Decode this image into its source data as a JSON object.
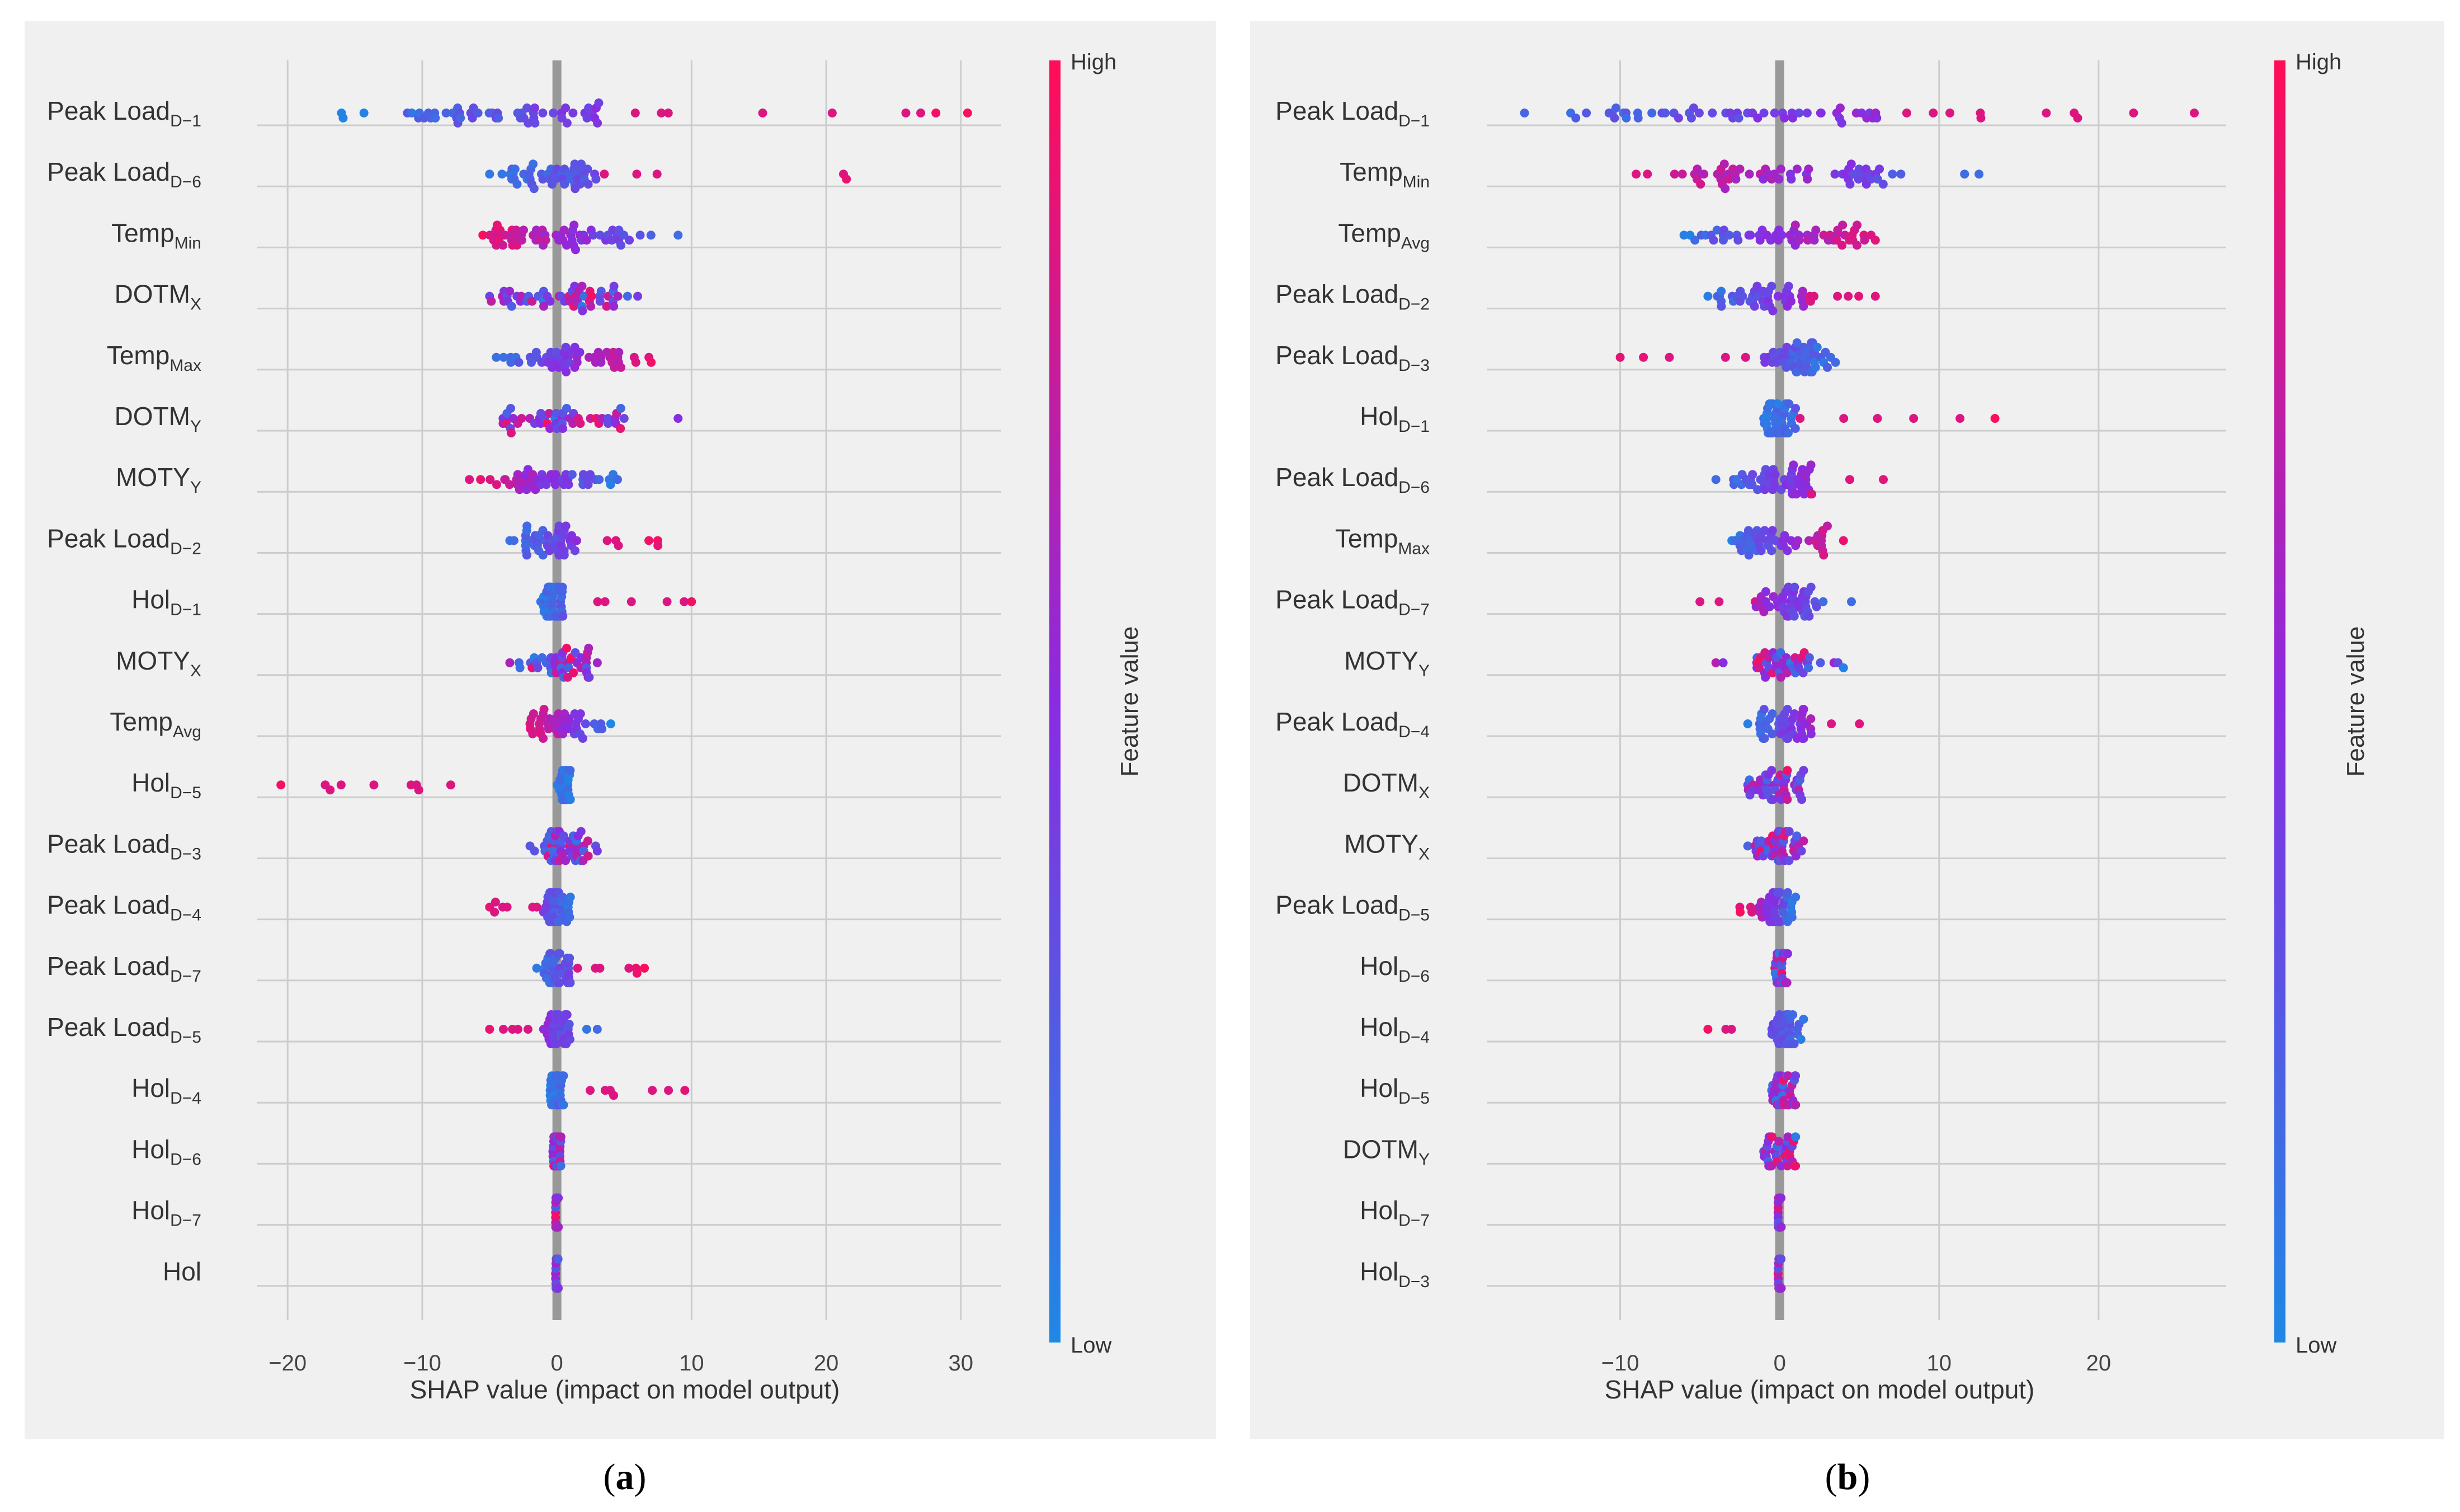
{
  "colors": {
    "low": "#1e88e5",
    "mid": "#8a2be2",
    "high": "#ff0d57",
    "panel_bg": "#f0f0f0",
    "grid": "#cccccc",
    "zero_line": "#999999"
  },
  "chart_data": [
    {
      "type": "scatter",
      "caption_prefix": "(",
      "caption_letter": "a",
      "caption_suffix": ")",
      "xlabel": "SHAP value (impact on model output)",
      "xlim": [
        -23,
        33
      ],
      "xticks": [
        -20,
        -10,
        0,
        10,
        20,
        30
      ],
      "xtick_labels": [
        "−20",
        "−10",
        "0",
        "10",
        "20",
        "30"
      ],
      "colorbar": {
        "title": "Feature value",
        "high_label": "High",
        "low_label": "Low"
      },
      "features": [
        {
          "base": "Peak Load",
          "sub": "D−1",
          "min": -16,
          "max": 30.5,
          "lo": -11.5,
          "hi": 4,
          "n": 60,
          "pol": 1
        },
        {
          "base": "Peak Load",
          "sub": "D−6",
          "min": -5,
          "max": 21.5,
          "lo": -3.5,
          "hi": 3,
          "n": 50,
          "pol": 1
        },
        {
          "base": "Temp",
          "sub": "Min",
          "min": -5.5,
          "max": 9,
          "lo": -5,
          "hi": 5,
          "n": 60,
          "pol": -1
        },
        {
          "base": "DOTM",
          "sub": "X",
          "min": -5,
          "max": 6,
          "lo": -4,
          "hi": 5,
          "n": 50,
          "pol": 0
        },
        {
          "base": "Temp",
          "sub": "Max",
          "min": -4.5,
          "max": 7,
          "lo": -3.5,
          "hi": 5,
          "n": 50,
          "pol": 1
        },
        {
          "base": "DOTM",
          "sub": "Y",
          "min": -4,
          "max": 9,
          "lo": -4,
          "hi": 5,
          "n": 45,
          "pol": 0
        },
        {
          "base": "MOTY",
          "sub": "Y",
          "min": -6.5,
          "max": 4.5,
          "lo": -4,
          "hi": 3,
          "n": 45,
          "pol": -1
        },
        {
          "base": "Peak Load",
          "sub": "D−2",
          "min": -3.5,
          "max": 7.5,
          "lo": -2.5,
          "hi": 1.5,
          "n": 45,
          "pol": 1
        },
        {
          "base": "Hol",
          "sub": "D−1",
          "min": -1.2,
          "max": 10,
          "lo": -1,
          "hi": 0.5,
          "n": 45,
          "pol": 1
        },
        {
          "base": "MOTY",
          "sub": "X",
          "min": -3.5,
          "max": 3,
          "lo": -2,
          "hi": 2.5,
          "n": 40,
          "pol": 0
        },
        {
          "base": "Temp",
          "sub": "Avg",
          "min": -2,
          "max": 4,
          "lo": -2,
          "hi": 2,
          "n": 40,
          "pol": -1
        },
        {
          "base": "Hol",
          "sub": "D−5",
          "min": -20.5,
          "max": 1,
          "lo": 0,
          "hi": 1,
          "n": 45,
          "pol": -1
        },
        {
          "base": "Peak Load",
          "sub": "D−3",
          "min": -2,
          "max": 3,
          "lo": -1,
          "hi": 2,
          "n": 45,
          "pol": 0
        },
        {
          "base": "Peak Load",
          "sub": "D−4",
          "min": -5,
          "max": 1,
          "lo": -1,
          "hi": 1,
          "n": 40,
          "pol": -1
        },
        {
          "base": "Peak Load",
          "sub": "D−7",
          "min": -1.5,
          "max": 6.5,
          "lo": -1,
          "hi": 1,
          "n": 40,
          "pol": 1
        },
        {
          "base": "Peak Load",
          "sub": "D−5",
          "min": -5,
          "max": 3,
          "lo": -1,
          "hi": 1,
          "n": 40,
          "pol": -1
        },
        {
          "base": "Hol",
          "sub": "D−4",
          "min": -0.5,
          "max": 9.5,
          "lo": -0.5,
          "hi": 0.5,
          "n": 40,
          "pol": 1
        },
        {
          "base": "Hol",
          "sub": "D−6",
          "min": -0.3,
          "max": 0.3,
          "lo": -0.3,
          "hi": 0.3,
          "n": 35,
          "pol": 0
        },
        {
          "base": "Hol",
          "sub": "D−7",
          "min": -0.1,
          "max": 0.1,
          "lo": -0.1,
          "hi": 0.1,
          "n": 30,
          "pol": 0
        },
        {
          "base": "Hol",
          "sub": "",
          "min": -0.1,
          "max": 0.1,
          "lo": -0.1,
          "hi": 0.1,
          "n": 30,
          "pol": 0
        }
      ]
    },
    {
      "type": "scatter",
      "caption_prefix": "(",
      "caption_letter": "b",
      "caption_suffix": ")",
      "xlabel": "SHAP value (impact on model output)",
      "xlim": [
        -19,
        28
      ],
      "xticks": [
        -10,
        0,
        10,
        20
      ],
      "xtick_labels": [
        "−10",
        "0",
        "10",
        "20"
      ],
      "colorbar": {
        "title": "Feature value",
        "high_label": "High",
        "low_label": "Low"
      },
      "features": [
        {
          "base": "Peak Load",
          "sub": "D−1",
          "min": -16,
          "max": 26,
          "lo": -13,
          "hi": 6.5,
          "n": 60,
          "pol": 1
        },
        {
          "base": "Temp",
          "sub": "Min",
          "min": -9,
          "max": 12.5,
          "lo": -7,
          "hi": 8,
          "n": 60,
          "pol": -1
        },
        {
          "base": "Temp",
          "sub": "Avg",
          "min": -6,
          "max": 6,
          "lo": -5,
          "hi": 5.5,
          "n": 55,
          "pol": 1
        },
        {
          "base": "Peak Load",
          "sub": "D−2",
          "min": -4.5,
          "max": 6,
          "lo": -4,
          "hi": 1.5,
          "n": 45,
          "pol": 1
        },
        {
          "base": "Peak Load",
          "sub": "D−3",
          "min": -10,
          "max": 3.5,
          "lo": -1,
          "hi": 3,
          "n": 50,
          "pol": -1
        },
        {
          "base": "Hol",
          "sub": "D−1",
          "min": -1,
          "max": 13.5,
          "lo": -1,
          "hi": 1,
          "n": 45,
          "pol": 1
        },
        {
          "base": "Peak Load",
          "sub": "D−6",
          "min": -4,
          "max": 6.5,
          "lo": -3,
          "hi": 2,
          "n": 50,
          "pol": 1
        },
        {
          "base": "Temp",
          "sub": "Max",
          "min": -3,
          "max": 4,
          "lo": -2.5,
          "hi": 3,
          "n": 45,
          "pol": 1
        },
        {
          "base": "Peak Load",
          "sub": "D−7",
          "min": -5,
          "max": 4.5,
          "lo": -1.5,
          "hi": 2,
          "n": 45,
          "pol": -1
        },
        {
          "base": "MOTY",
          "sub": "Y",
          "min": -4,
          "max": 4,
          "lo": -1.5,
          "hi": 2,
          "n": 40,
          "pol": 0
        },
        {
          "base": "Peak Load",
          "sub": "D−4",
          "min": -2,
          "max": 5,
          "lo": -1.5,
          "hi": 2,
          "n": 45,
          "pol": 1
        },
        {
          "base": "DOTM",
          "sub": "X",
          "min": -2,
          "max": 1.5,
          "lo": -2,
          "hi": 1.5,
          "n": 40,
          "pol": 0
        },
        {
          "base": "MOTY",
          "sub": "X",
          "min": -2,
          "max": 1.5,
          "lo": -1.5,
          "hi": 1.5,
          "n": 40,
          "pol": 0
        },
        {
          "base": "Peak Load",
          "sub": "D−5",
          "min": -2.5,
          "max": 1,
          "lo": -1.5,
          "hi": 1,
          "n": 40,
          "pol": -1
        },
        {
          "base": "Hol",
          "sub": "D−6",
          "min": -0.3,
          "max": 0.5,
          "lo": -0.3,
          "hi": 0.5,
          "n": 35,
          "pol": 0
        },
        {
          "base": "Hol",
          "sub": "D−4",
          "min": -4.5,
          "max": 1.5,
          "lo": -0.5,
          "hi": 1,
          "n": 40,
          "pol": -1
        },
        {
          "base": "Hol",
          "sub": "D−5",
          "min": -0.5,
          "max": 1,
          "lo": -0.5,
          "hi": 1,
          "n": 35,
          "pol": 0
        },
        {
          "base": "DOTM",
          "sub": "Y",
          "min": -1,
          "max": 1,
          "lo": -1,
          "hi": 1,
          "n": 35,
          "pol": 0
        },
        {
          "base": "Hol",
          "sub": "D−7",
          "min": -0.1,
          "max": 0.1,
          "lo": -0.1,
          "hi": 0.1,
          "n": 30,
          "pol": 0
        },
        {
          "base": "Hol",
          "sub": "D−3",
          "min": -0.1,
          "max": 0.1,
          "lo": -0.1,
          "hi": 0.1,
          "n": 30,
          "pol": 0
        }
      ]
    }
  ]
}
